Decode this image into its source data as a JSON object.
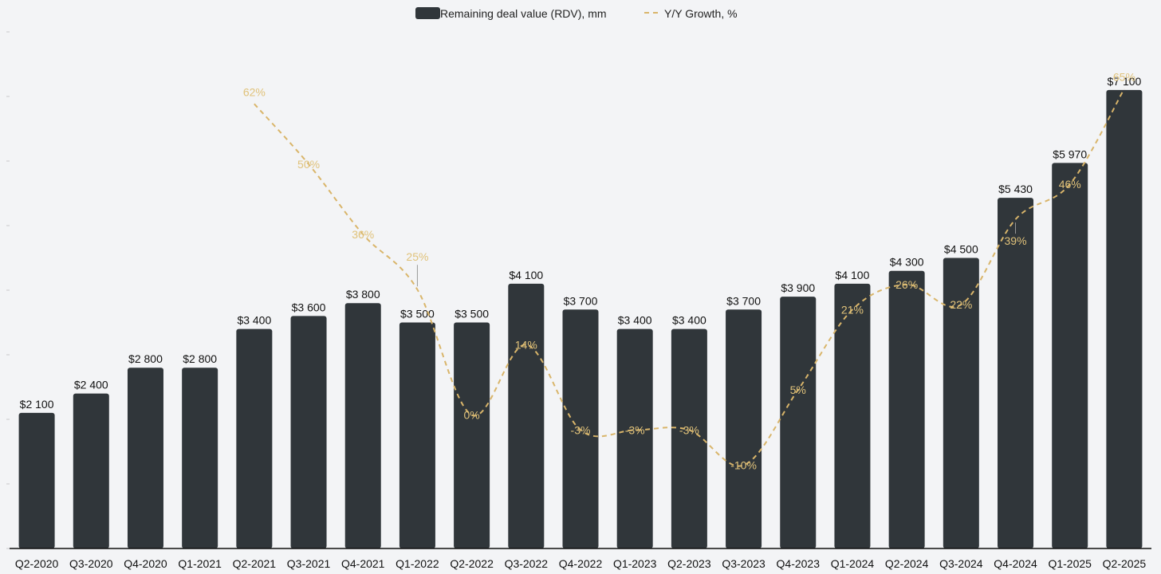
{
  "chart_data": {
    "type": "bar",
    "title": "",
    "xlabel": "",
    "ylabel": "",
    "ylim": [
      0,
      8000
    ],
    "categories": [
      "Q2-2020",
      "Q3-2020",
      "Q4-2020",
      "Q1-2021",
      "Q2-2021",
      "Q3-2021",
      "Q4-2021",
      "Q1-2022",
      "Q2-2022",
      "Q3-2022",
      "Q4-2022",
      "Q1-2023",
      "Q2-2023",
      "Q3-2023",
      "Q4-2023",
      "Q1-2024",
      "Q2-2024",
      "Q3-2024",
      "Q4-2024",
      "Q1-2025",
      "Q2-2025"
    ],
    "series": [
      {
        "name": "Remaining deal value (RDV), mm",
        "type": "bar",
        "color": "#30363a",
        "values": [
          2100,
          2400,
          2800,
          2800,
          3400,
          3600,
          3800,
          3500,
          3500,
          4100,
          3700,
          3400,
          3400,
          3700,
          3900,
          4100,
          4300,
          4500,
          5430,
          5970,
          7100
        ],
        "labels": [
          "$2 100",
          "$2 400",
          "$2 800",
          "$2 800",
          "$3 400",
          "$3 600",
          "$3 800",
          "$3 500",
          "$3 500",
          "$4 100",
          "$3 700",
          "$3 400",
          "$3 400",
          "$3 700",
          "$3 900",
          "$4 100",
          "$4 300",
          "$4 500",
          "$5 430",
          "$5 970",
          "$7 100"
        ]
      },
      {
        "name": "Y/Y Growth, %",
        "type": "line",
        "style": "dashed",
        "color": "#d9b56a",
        "ylim": [
          -15,
          70
        ],
        "values": [
          null,
          null,
          null,
          null,
          62,
          50,
          36,
          25,
          0,
          14,
          -3,
          -3,
          -3,
          -10,
          5,
          21,
          26,
          22,
          39,
          46,
          65
        ],
        "labels": [
          null,
          null,
          null,
          null,
          "62%",
          "50%",
          "36%",
          "25%",
          "0%",
          "14%",
          "-3%",
          "-3%",
          "-3%",
          "-10%",
          "5%",
          "21%",
          "26%",
          "22%",
          "39%",
          "46%",
          "65%"
        ]
      }
    ],
    "legend": {
      "position": "top-center"
    }
  }
}
